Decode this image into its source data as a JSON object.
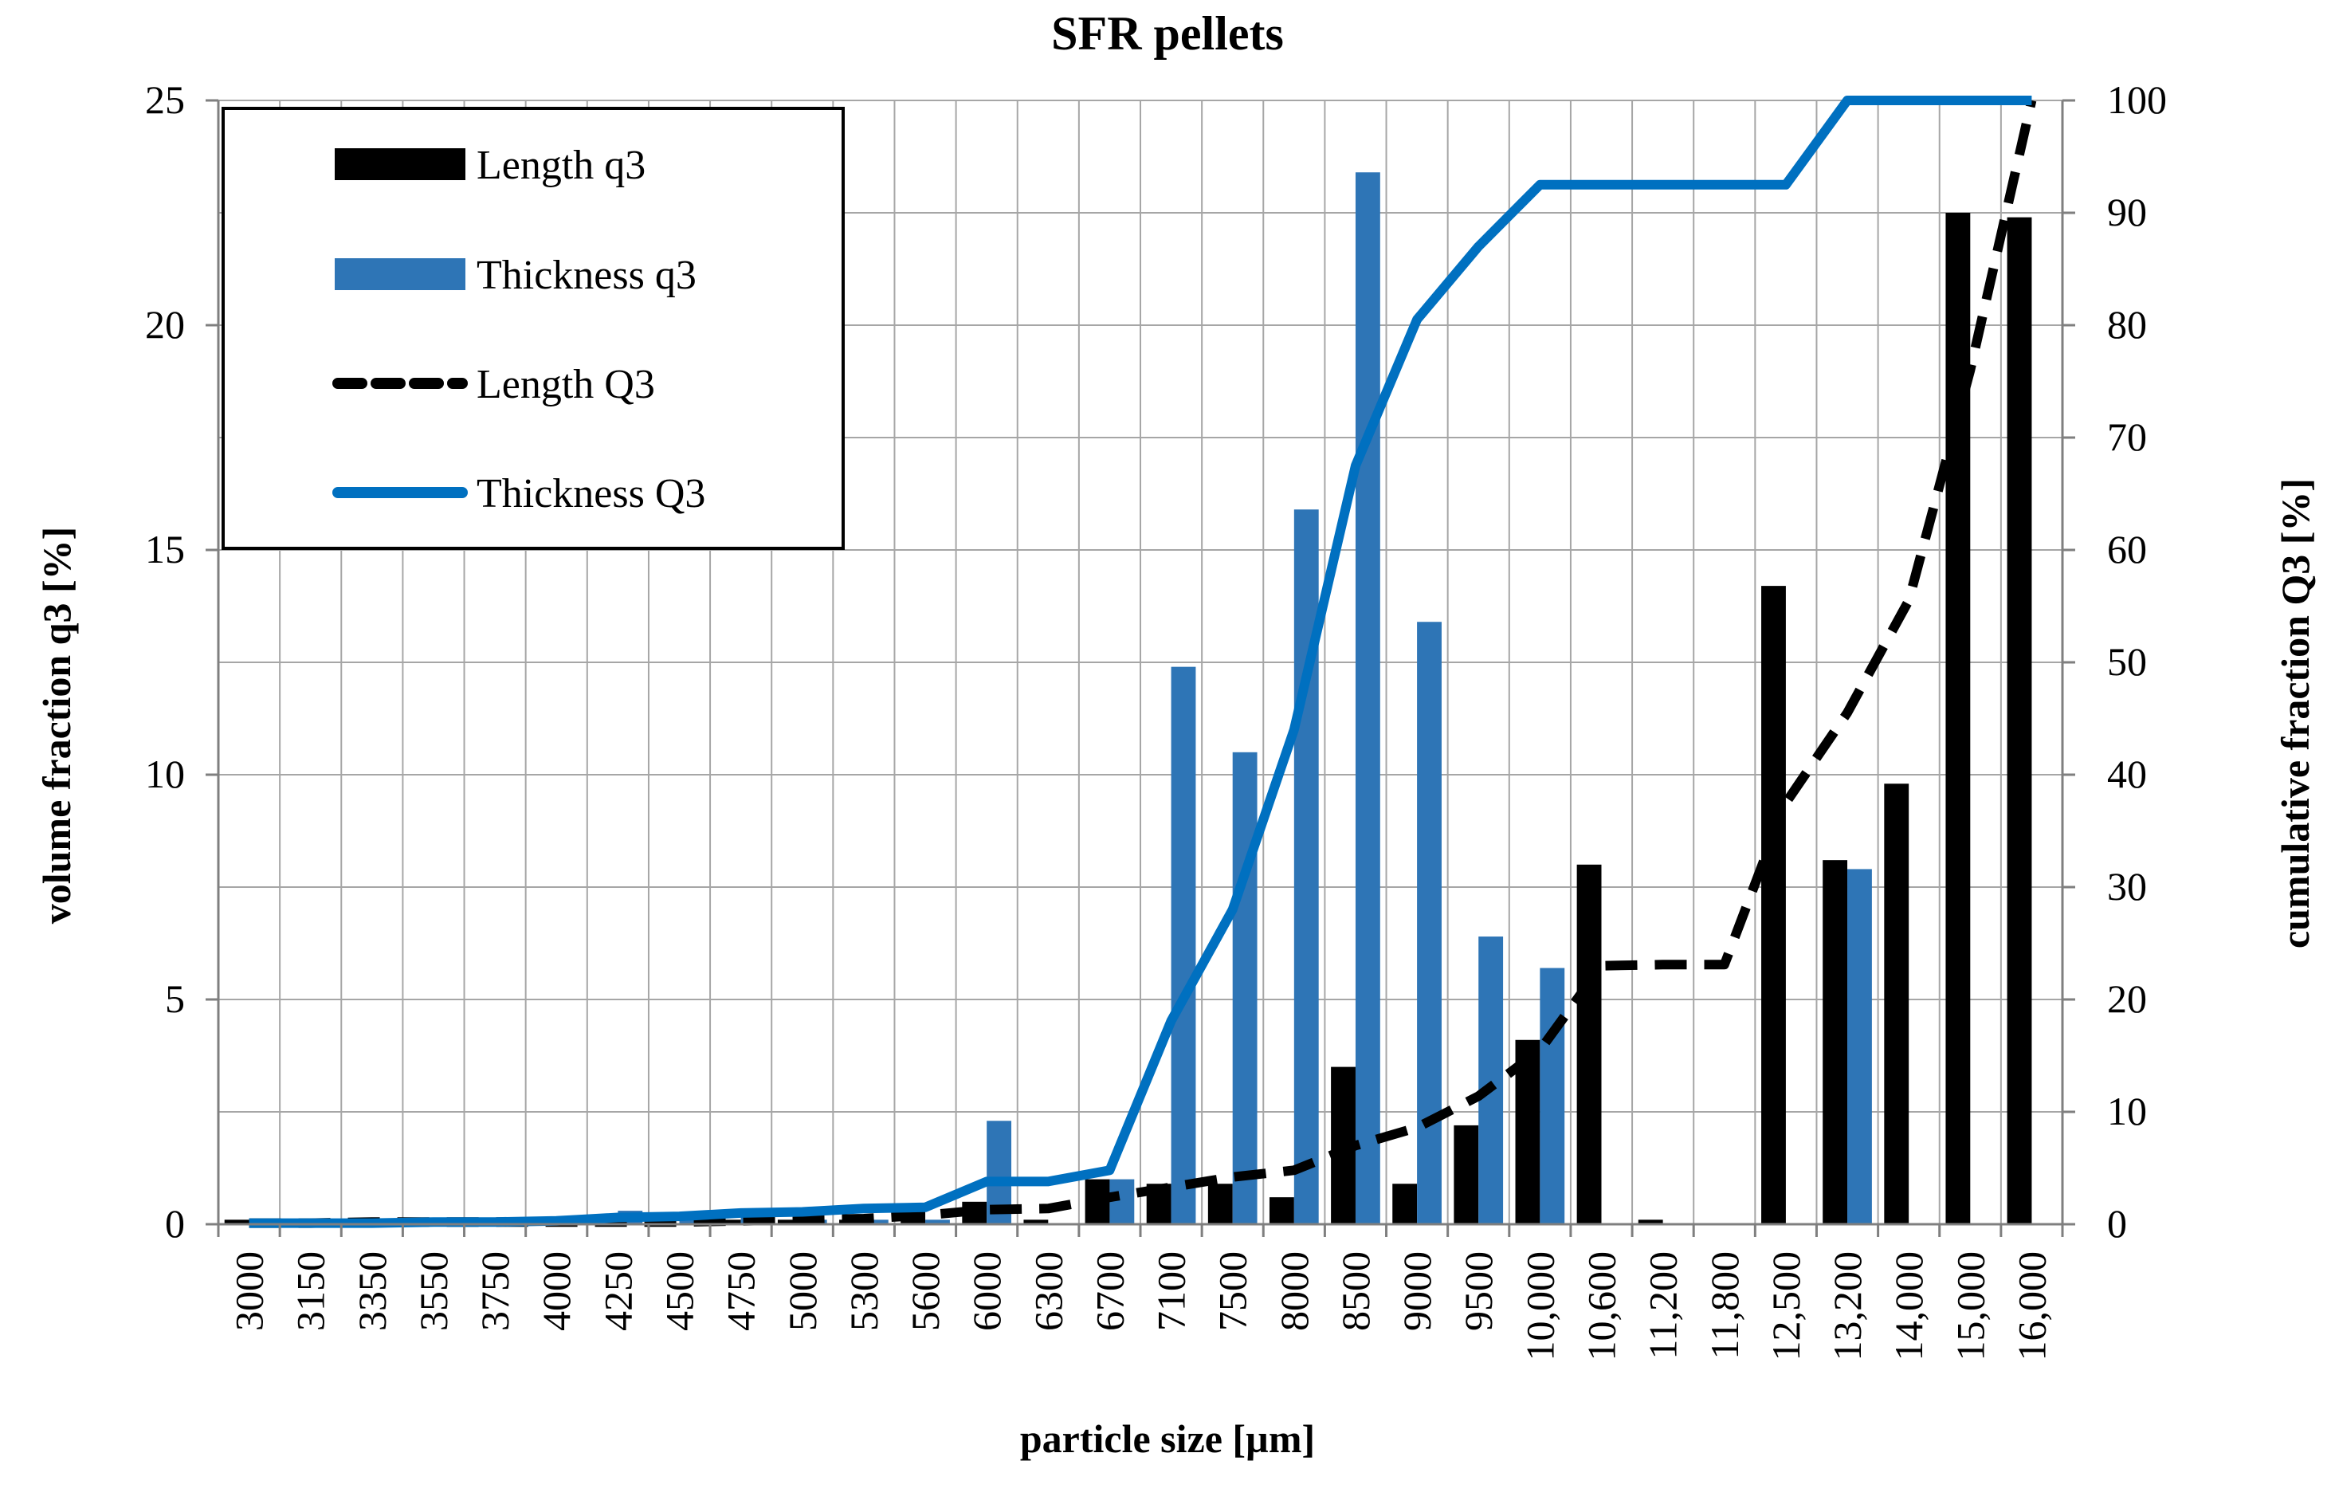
{
  "chart_data": {
    "type": "bar",
    "title": "SFR pellets",
    "xlabel": "particle size [µm]",
    "ylabel": "volume fraction q3 [%]",
    "y2label": "cumulative fraction Q3 [%]",
    "ylim": [
      0,
      25
    ],
    "y2lim": [
      0,
      100
    ],
    "yticks": [
      0,
      5,
      10,
      15,
      20,
      25
    ],
    "y2ticks": [
      0,
      10,
      20,
      30,
      40,
      50,
      60,
      70,
      80,
      90,
      100
    ],
    "grid": true,
    "legend_position": "top-left",
    "categories": [
      "3000",
      "3150",
      "3350",
      "3550",
      "3750",
      "4000",
      "4250",
      "4500",
      "4750",
      "5000",
      "5300",
      "5600",
      "6000",
      "6300",
      "6700",
      "7100",
      "7500",
      "8000",
      "8500",
      "9000",
      "9500",
      "10,000",
      "10,600",
      "11,200",
      "11,800",
      "12,500",
      "13,200",
      "14,000",
      "15,000",
      "16,000"
    ],
    "series": [
      {
        "name": "Length q3",
        "kind": "bar",
        "axis": "left",
        "color": "#000000",
        "values": [
          0.1,
          0,
          0.1,
          0,
          0,
          0,
          0,
          0,
          0.1,
          0.1,
          0.1,
          0.3,
          0.5,
          0.1,
          1.0,
          0.9,
          0.9,
          0.6,
          3.5,
          0.9,
          2.2,
          4.1,
          8.0,
          0.1,
          0,
          14.2,
          8.1,
          9.8,
          22.5,
          22.4
        ]
      },
      {
        "name": "Thickness q3",
        "kind": "bar",
        "axis": "left",
        "color": "#2e75b6",
        "values": [
          0.05,
          0.05,
          0.05,
          0.05,
          0.05,
          0.1,
          0.3,
          0.1,
          0.2,
          0.1,
          0.1,
          0.1,
          2.3,
          0,
          1.0,
          12.4,
          10.5,
          15.9,
          23.4,
          13.4,
          6.4,
          5.7,
          0,
          0,
          0,
          0,
          7.9,
          0,
          0,
          0
        ]
      },
      {
        "name": "Length Q3",
        "kind": "line",
        "style": "dashed",
        "axis": "right",
        "color": "#000000",
        "values": [
          0.1,
          0.1,
          0.2,
          0.2,
          0.2,
          0.2,
          0.2,
          0.2,
          0.3,
          0.4,
          0.5,
          0.8,
          1.3,
          1.4,
          2.4,
          3.3,
          4.2,
          4.8,
          7.0,
          8.6,
          11.4,
          15.5,
          23.0,
          23.1,
          23.1,
          37.5,
          45.5,
          55.5,
          76.0,
          100
        ]
      },
      {
        "name": "Thickness Q3",
        "kind": "line",
        "style": "solid",
        "axis": "right",
        "color": "#0070c0",
        "values": [
          0.1,
          0.1,
          0.1,
          0.2,
          0.2,
          0.3,
          0.6,
          0.7,
          1.0,
          1.1,
          1.4,
          1.5,
          3.8,
          3.8,
          4.8,
          18.1,
          28.0,
          44.0,
          67.5,
          80.5,
          87.0,
          92.5,
          92.5,
          92.5,
          92.5,
          92.5,
          100,
          100,
          100,
          100
        ]
      }
    ]
  }
}
